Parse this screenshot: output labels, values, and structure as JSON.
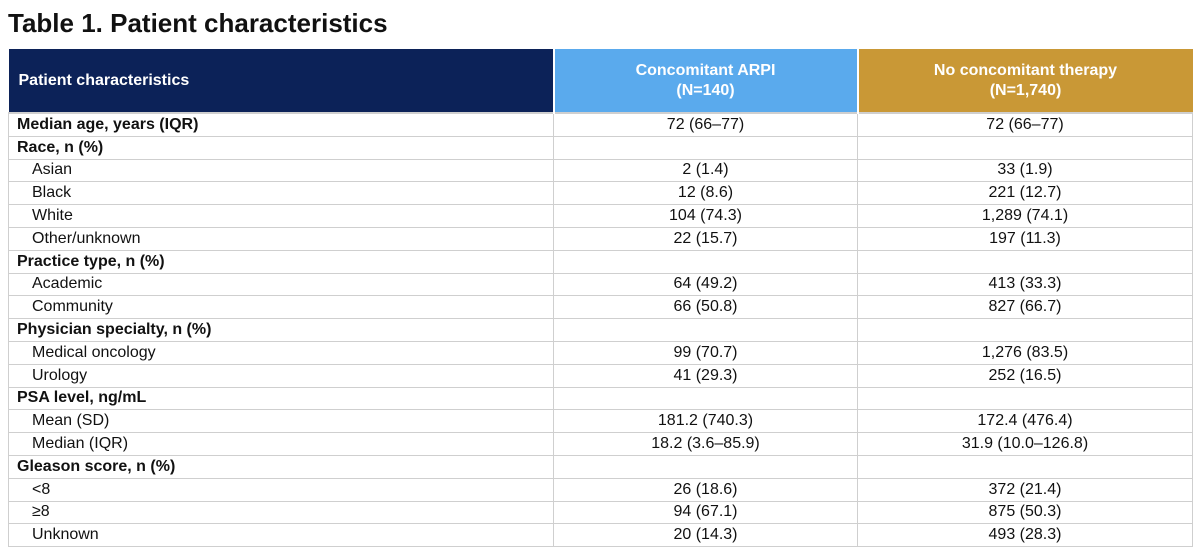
{
  "title": "Table 1. Patient characteristics",
  "colors": {
    "header_navy": "#0c2258",
    "header_blue": "#5aaaed",
    "header_gold": "#c99836"
  },
  "header": {
    "col1": "Patient characteristics",
    "col2_line1": "Concomitant ARPI",
    "col2_line2": "(N=140)",
    "col3_line1": "No concomitant therapy",
    "col3_line2": "(N=1,740)"
  },
  "rows": [
    {
      "label": "Median age, years (IQR)",
      "type": "cat",
      "arpi": "72 (66–77)",
      "none": "72 (66–77)"
    },
    {
      "label": "Race, n (%)",
      "type": "cat",
      "arpi": "",
      "none": ""
    },
    {
      "label": "Asian",
      "type": "sub",
      "arpi": "2 (1.4)",
      "none": "33 (1.9)"
    },
    {
      "label": "Black",
      "type": "sub",
      "arpi": "12 (8.6)",
      "none": "221 (12.7)"
    },
    {
      "label": "White",
      "type": "sub",
      "arpi": "104 (74.3)",
      "none": "1,289 (74.1)"
    },
    {
      "label": "Other/unknown",
      "type": "sub",
      "arpi": "22 (15.7)",
      "none": "197 (11.3)"
    },
    {
      "label": "Practice type, n (%)",
      "type": "cat",
      "arpi": "",
      "none": ""
    },
    {
      "label": "Academic",
      "type": "sub",
      "arpi": "64 (49.2)",
      "none": "413 (33.3)"
    },
    {
      "label": "Community",
      "type": "sub",
      "arpi": "66 (50.8)",
      "none": "827 (66.7)"
    },
    {
      "label": "Physician specialty, n (%)",
      "type": "cat",
      "arpi": "",
      "none": ""
    },
    {
      "label": "Medical oncology",
      "type": "sub",
      "arpi": "99 (70.7)",
      "none": "1,276 (83.5)"
    },
    {
      "label": "Urology",
      "type": "sub",
      "arpi": "41 (29.3)",
      "none": "252 (16.5)"
    },
    {
      "label": "PSA level, ng/mL",
      "type": "cat",
      "arpi": "",
      "none": ""
    },
    {
      "label": "Mean (SD)",
      "type": "sub",
      "arpi": "181.2 (740.3)",
      "none": "172.4 (476.4)"
    },
    {
      "label": "Median (IQR)",
      "type": "sub",
      "arpi": "18.2 (3.6–85.9)",
      "none": "31.9 (10.0–126.8)"
    },
    {
      "label": "Gleason score, n (%)",
      "type": "cat",
      "arpi": "",
      "none": ""
    },
    {
      "label": "<8",
      "type": "sub",
      "arpi": "26 (18.6)",
      "none": "372 (21.4)"
    },
    {
      "label": "≥8",
      "type": "sub",
      "arpi": "94 (67.1)",
      "none": "875 (50.3)"
    },
    {
      "label": "Unknown",
      "type": "sub",
      "arpi": "20 (14.3)",
      "none": "493 (28.3)"
    }
  ]
}
